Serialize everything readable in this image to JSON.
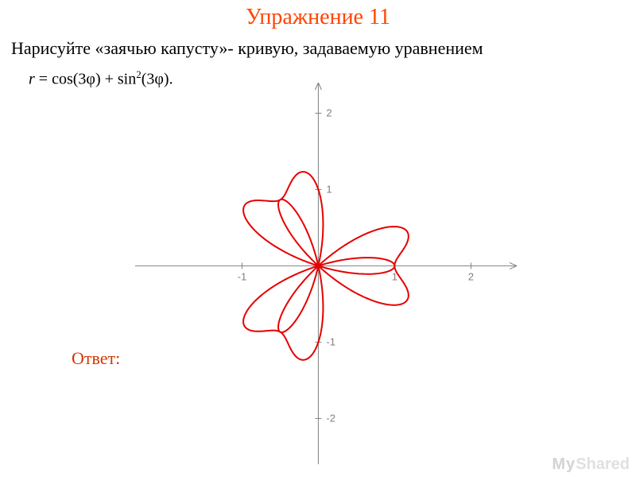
{
  "title": {
    "text": "Упражнение 11",
    "color": "#ff4400",
    "fontsize": 28
  },
  "problem": {
    "text": "Нарисуйте «заячью капусту»- кривую, задаваемую уравнением",
    "color": "#000000",
    "fontsize": 22
  },
  "formula": {
    "prefix_italic": "r",
    "eq": " = cos(3φ) + sin",
    "sup": "2",
    "suffix": "(3φ).",
    "color": "#000000"
  },
  "answer": {
    "text": "Ответ:",
    "color": "#d43500",
    "fontsize": 22
  },
  "watermark": {
    "my": "My",
    "shared": "Shared",
    "color_my": "#b0b0b0",
    "color_sh": "#c8c8c8"
  },
  "chart": {
    "type": "polar-cartesian",
    "equation": "r = cos(3*phi) + sin(3*phi)^2",
    "curve_color": "#e60000",
    "curve_width": 2,
    "axis_color": "#808080",
    "axis_width": 1,
    "tick_color": "#808080",
    "tick_label_color": "#808080",
    "background_color": "#ffffff",
    "xlim": [
      -2.4,
      2.6
    ],
    "ylim": [
      -2.6,
      2.4
    ],
    "xticks": [
      -1,
      1,
      2
    ],
    "yticks": [
      -2,
      -1,
      1,
      2
    ],
    "svg": {
      "size": 480
    },
    "phi_samples": 720
  }
}
